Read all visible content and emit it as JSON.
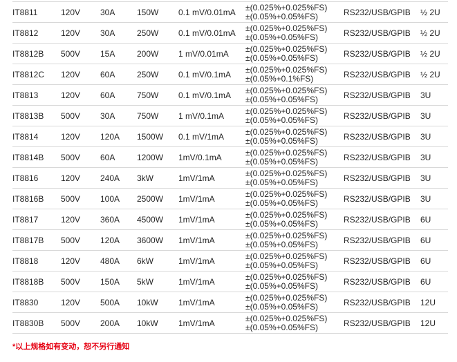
{
  "colors": {
    "background": "#ffffff",
    "separator": "#d8d8d8",
    "text": "#252525",
    "footnote_red": "#e60012"
  },
  "table": {
    "rows": [
      {
        "model": "IT8811",
        "voltage": "120V",
        "current": "30A",
        "power": "150W",
        "resolution": "0.1 mV/0.01mA",
        "accuracy_line1": "±(0.025%+0.025%FS)",
        "accuracy_line2": "±(0.05%+0.05%FS)",
        "interface": "RS232/USB/GPIB",
        "size": "½ 2U"
      },
      {
        "model": "IT8812",
        "voltage": "120V",
        "current": "30A",
        "power": "250W",
        "resolution": "0.1 mV/0.01mA",
        "accuracy_line1": "±(0.025%+0.025%FS)",
        "accuracy_line2": "±(0.05%+0.05%FS)",
        "interface": "RS232/USB/GPIB",
        "size": "½ 2U"
      },
      {
        "model": "IT8812B",
        "voltage": "500V",
        "current": "15A",
        "power": "200W",
        "resolution": "1 mV/0.01mA",
        "accuracy_line1": "±(0.025%+0.025%FS)",
        "accuracy_line2": "±(0.05%+0.05%FS)",
        "interface": "RS232/USB/GPIB",
        "size": "½ 2U"
      },
      {
        "model": "IT8812C",
        "voltage": "120V",
        "current": "60A",
        "power": "250W",
        "resolution": "0.1 mV/0.1mA",
        "accuracy_line1": "±(0.025%+0.025%FS)",
        "accuracy_line2": "±(0.05%+0.1%FS)",
        "interface": "RS232/USB/GPIB",
        "size": "½ 2U"
      },
      {
        "model": "IT8813",
        "voltage": "120V",
        "current": "60A",
        "power": "750W",
        "resolution": "0.1 mV/0.1mA",
        "accuracy_line1": "±(0.025%+0.025%FS)",
        "accuracy_line2": "±(0.05%+0.05%FS)",
        "interface": "RS232/USB/GPIB",
        "size": "3U"
      },
      {
        "model": "IT8813B",
        "voltage": "500V",
        "current": "30A",
        "power": "750W",
        "resolution": "1 mV/0.1mA",
        "accuracy_line1": "±(0.025%+0.025%FS)",
        "accuracy_line2": "±(0.05%+0.05%FS)",
        "interface": "RS232/USB/GPIB",
        "size": "3U"
      },
      {
        "model": "IT8814",
        "voltage": "120V",
        "current": "120A",
        "power": "1500W",
        "resolution": "0.1 mV/1mA",
        "accuracy_line1": "±(0.025%+0.025%FS)",
        "accuracy_line2": "±(0.05%+0.05%FS)",
        "interface": "RS232/USB/GPIB",
        "size": "3U"
      },
      {
        "model": "IT8814B",
        "voltage": "500V",
        "current": "60A",
        "power": "1200W",
        "resolution": "1mV/0.1mA",
        "accuracy_line1": "±(0.025%+0.025%FS)",
        "accuracy_line2": "±(0.05%+0.05%FS)",
        "interface": "RS232/USB/GPIB",
        "size": "3U"
      },
      {
        "model": "IT8816",
        "voltage": "120V",
        "current": "240A",
        "power": "3kW",
        "resolution": "1mV/1mA",
        "accuracy_line1": "±(0.025%+0.025%FS)",
        "accuracy_line2": "±(0.05%+0.05%FS)",
        "interface": "RS232/USB/GPIB",
        "size": "3U"
      },
      {
        "model": "IT8816B",
        "voltage": "500V",
        "current": "100A",
        "power": "2500W",
        "resolution": "1mV/1mA",
        "accuracy_line1": "±(0.025%+0.025%FS)",
        "accuracy_line2": "±(0.05%+0.05%FS)",
        "interface": "RS232/USB/GPIB",
        "size": "3U"
      },
      {
        "model": "IT8817",
        "voltage": "120V",
        "current": "360A",
        "power": "4500W",
        "resolution": "1mV/1mA",
        "accuracy_line1": "±(0.025%+0.025%FS)",
        "accuracy_line2": "±(0.05%+0.05%FS)",
        "interface": "RS232/USB/GPIB",
        "size": "6U"
      },
      {
        "model": "IT8817B",
        "voltage": "500V",
        "current": "120A",
        "power": "3600W",
        "resolution": "1mV/1mA",
        "accuracy_line1": "±(0.025%+0.025%FS)",
        "accuracy_line2": "±(0.05%+0.05%FS)",
        "interface": "RS232/USB/GPIB",
        "size": "6U"
      },
      {
        "model": "IT8818",
        "voltage": "120V",
        "current": "480A",
        "power": "6kW",
        "resolution": "1mV/1mA",
        "accuracy_line1": "±(0.025%+0.025%FS)",
        "accuracy_line2": "±(0.05%+0.05%FS)",
        "interface": "RS232/USB/GPIB",
        "size": "6U"
      },
      {
        "model": "IT8818B",
        "voltage": "500V",
        "current": "150A",
        "power": "5kW",
        "resolution": "1mV/1mA",
        "accuracy_line1": "±(0.025%+0.025%FS)",
        "accuracy_line2": "±(0.05%+0.05%FS)",
        "interface": "RS232/USB/GPIB",
        "size": "6U"
      },
      {
        "model": "IT8830",
        "voltage": "120V",
        "current": "500A",
        "power": "10kW",
        "resolution": "1mV/1mA",
        "accuracy_line1": "±(0.025%+0.025%FS)",
        "accuracy_line2": "±(0.05%+0.05%FS)",
        "interface": "RS232/USB/GPIB",
        "size": "12U"
      },
      {
        "model": "IT8830B",
        "voltage": "500V",
        "current": "200A",
        "power": "10kW",
        "resolution": "1mV/1mA",
        "accuracy_line1": "±(0.025%+0.025%FS)",
        "accuracy_line2": "±(0.05%+0.05%FS)",
        "interface": "RS232/USB/GPIB",
        "size": "12U"
      }
    ]
  },
  "footnote": {
    "text": "*以上规格如有变动，恕不另行通知"
  }
}
